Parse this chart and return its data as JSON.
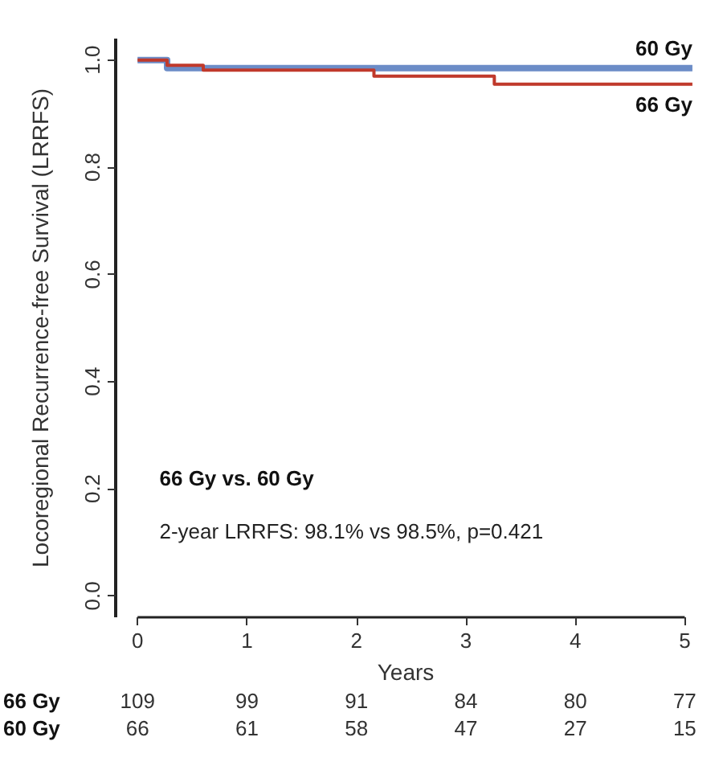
{
  "chart_data": {
    "type": "step",
    "xlabel": "Years",
    "ylabel": "Locoregional Recurrence-free Survival (LRRFS)",
    "series": [
      {
        "name": "60 Gy",
        "color": "#6b8cc7",
        "x": [
          0,
          0.27,
          5.07
        ],
        "values": [
          1,
          0.985,
          0.985
        ]
      },
      {
        "name": "66 Gy",
        "color": "#c0392b",
        "x": [
          0,
          0.27,
          0.6,
          2.16,
          3.26,
          5.07
        ],
        "values": [
          1,
          0.99,
          0.981,
          0.97,
          0.955,
          0.955
        ]
      }
    ],
    "xlim": [
      -0.2,
      5.1
    ],
    "xticks": [
      0,
      1,
      2,
      3,
      4,
      5
    ],
    "ylim": [
      -0.04,
      1.04
    ],
    "yticks": [
      {
        "value": 0,
        "label": "0.0"
      },
      {
        "value": 0.2,
        "label": "0.2"
      },
      {
        "value": 0.4,
        "label": "0.4"
      },
      {
        "value": 0.6,
        "label": "0.6"
      },
      {
        "value": 0.8,
        "label": "0.8"
      },
      {
        "value": 1,
        "label": "1.0"
      }
    ],
    "annotations": [
      "66 Gy vs. 60 Gy",
      "2-year LRRFS: 98.1% vs 98.5%, p=0.421",
      "66 Gy  109  99  91  84  80  77",
      "60 Gy  66  61  58  47  27  15"
    ],
    "legend": false,
    "grid": false,
    "marker": "none",
    "line_style": "solid"
  }
}
